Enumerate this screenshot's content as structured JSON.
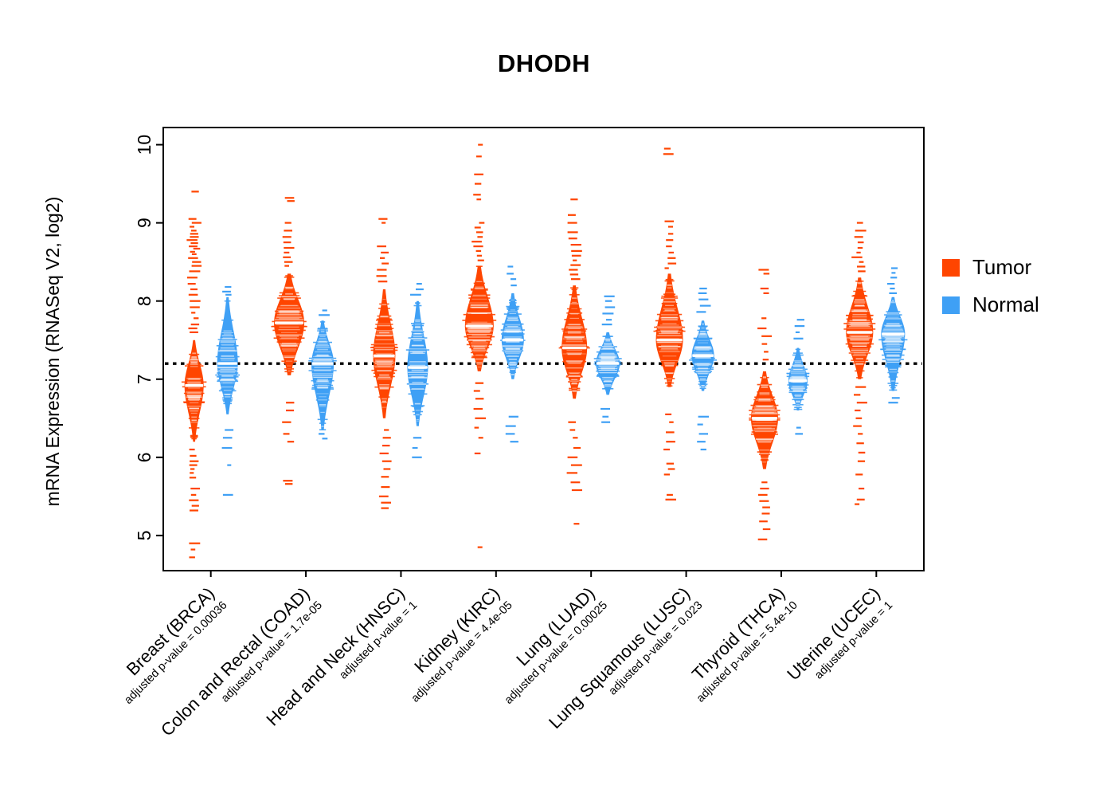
{
  "title": "DHODH",
  "legend": {
    "tumor_label": "Tumor",
    "normal_label": "Normal"
  },
  "colors": {
    "tumor": "#FF4500",
    "normal": "#3FA0F5",
    "reference_line": "#000000"
  },
  "chart_data": {
    "type": "violin",
    "subtype": "beanplot-tumor-vs-normal",
    "title": "DHODH",
    "ylabel": "mRNA Expression (RNASeq V2, log2)",
    "ylim": [
      4.55,
      10.22
    ],
    "yticks": [
      5,
      6,
      7,
      8,
      9,
      10
    ],
    "reference_line_y": 7.2,
    "legend_position": "right",
    "grid": false,
    "groups": [
      {
        "label": "Breast (BRCA)",
        "pvalue_label": "adjusted p-value = 0.00036",
        "tumor": {
          "median": 6.92,
          "lo": 6.2,
          "hi": 7.5,
          "width": 12,
          "outliers_high": [
            7.6,
            7.65,
            7.7,
            7.78,
            7.85,
            7.92,
            8.0,
            8.08,
            8.15,
            8.22,
            8.3,
            8.38,
            8.45,
            8.5,
            8.55,
            8.6,
            8.63,
            8.67,
            8.7,
            8.74,
            8.78,
            8.82,
            8.86,
            8.9,
            8.95,
            9.0,
            9.05,
            9.4
          ],
          "outliers_low": [
            6.1,
            6.02,
            5.95,
            5.9,
            5.85,
            5.8,
            5.74,
            5.6,
            5.52,
            5.45,
            5.38,
            5.32,
            4.9,
            4.82,
            4.72
          ]
        },
        "normal": {
          "median": 7.2,
          "lo": 6.55,
          "hi": 8.05,
          "width": 13,
          "outliers_high": [
            8.08,
            8.12,
            8.18
          ],
          "outliers_low": [
            6.35,
            6.25,
            6.12,
            5.9,
            5.52
          ]
        }
      },
      {
        "label": "Colon and Rectal (COAD)",
        "pvalue_label": "adjusted p-value = 1.7e-05",
        "tumor": {
          "median": 7.72,
          "lo": 7.05,
          "hi": 8.35,
          "width": 19,
          "outliers_high": [
            8.45,
            8.5,
            8.56,
            8.62,
            8.68,
            8.75,
            8.82,
            8.9,
            9.0,
            9.28,
            9.32
          ],
          "outliers_low": [
            6.7,
            6.6,
            6.45,
            6.3,
            6.2,
            5.7,
            5.66
          ]
        },
        "normal": {
          "median": 7.2,
          "lo": 6.35,
          "hi": 7.75,
          "width": 14,
          "outliers_high": [
            7.82,
            7.88
          ],
          "outliers_low": [
            6.3,
            6.24
          ]
        }
      },
      {
        "label": "Head and Neck (HNSC)",
        "pvalue_label": "adjusted p-value = 1",
        "tumor": {
          "median": 7.3,
          "lo": 6.5,
          "hi": 8.15,
          "width": 14,
          "outliers_high": [
            8.25,
            8.32,
            8.4,
            8.48,
            8.55,
            8.62,
            8.7,
            9.0,
            9.05
          ],
          "outliers_low": [
            6.35,
            6.25,
            6.15,
            6.05,
            5.95,
            5.85,
            5.75,
            5.62,
            5.5,
            5.42,
            5.35
          ]
        },
        "normal": {
          "median": 7.15,
          "lo": 6.4,
          "hi": 8.0,
          "width": 13,
          "outliers_high": [
            8.08,
            8.15,
            8.22
          ],
          "outliers_low": [
            6.25,
            6.12,
            6.0
          ]
        }
      },
      {
        "label": "Kidney (KIRC)",
        "pvalue_label": "adjusted p-value = 4.4e-05",
        "tumor": {
          "median": 7.68,
          "lo": 7.1,
          "hi": 8.45,
          "width": 18,
          "outliers_high": [
            8.52,
            8.58,
            8.64,
            8.7,
            8.76,
            8.82,
            8.88,
            8.94,
            9.0,
            9.3,
            9.36,
            9.5,
            9.62,
            9.85,
            10.0
          ],
          "outliers_low": [
            6.95,
            6.85,
            6.75,
            6.62,
            6.5,
            6.38,
            6.25,
            6.05,
            4.85
          ]
        },
        "normal": {
          "median": 7.5,
          "lo": 7.0,
          "hi": 8.1,
          "width": 14,
          "outliers_high": [
            8.2,
            8.28,
            8.35,
            8.44
          ],
          "outliers_low": [
            6.52,
            6.4,
            6.3,
            6.2
          ]
        }
      },
      {
        "label": "Lung (LUAD)",
        "pvalue_label": "adjusted p-value = 0.00025",
        "tumor": {
          "median": 7.4,
          "lo": 6.75,
          "hi": 8.2,
          "width": 16,
          "outliers_high": [
            8.28,
            8.34,
            8.4,
            8.46,
            8.52,
            8.58,
            8.64,
            8.72,
            8.8,
            8.88,
            9.0,
            9.1,
            9.3
          ],
          "outliers_low": [
            6.45,
            6.35,
            6.25,
            6.12,
            6.0,
            5.9,
            5.8,
            5.68,
            5.58,
            5.15
          ]
        },
        "normal": {
          "median": 7.2,
          "lo": 6.8,
          "hi": 7.6,
          "width": 15,
          "outliers_high": [
            7.7,
            7.76,
            7.84,
            7.92,
            8.0,
            8.06
          ],
          "outliers_low": [
            6.62,
            6.52,
            6.45
          ]
        }
      },
      {
        "label": "Lung Squamous (LUSC)",
        "pvalue_label": "adjusted p-value = 0.023",
        "tumor": {
          "median": 7.5,
          "lo": 6.9,
          "hi": 8.35,
          "width": 17,
          "outliers_high": [
            8.42,
            8.48,
            8.55,
            8.62,
            8.7,
            8.78,
            8.86,
            8.95,
            9.02,
            9.88,
            9.95
          ],
          "outliers_low": [
            6.55,
            6.45,
            6.32,
            6.2,
            6.1,
            5.92,
            5.85,
            5.78,
            5.52,
            5.46
          ]
        },
        "normal": {
          "median": 7.3,
          "lo": 6.85,
          "hi": 7.75,
          "width": 14,
          "outliers_high": [
            7.86,
            7.94,
            8.02,
            8.1,
            8.16
          ],
          "outliers_low": [
            6.52,
            6.42,
            6.3,
            6.2,
            6.1
          ]
        }
      },
      {
        "label": "Thyroid (THCA)",
        "pvalue_label": "adjusted p-value = 5.4e-10",
        "tumor": {
          "median": 6.5,
          "lo": 5.85,
          "hi": 7.1,
          "width": 17,
          "outliers_high": [
            7.25,
            7.35,
            7.45,
            7.55,
            7.65,
            7.78,
            8.1,
            8.16,
            8.35,
            8.4
          ],
          "outliers_low": [
            5.68,
            5.6,
            5.52,
            5.44,
            5.36,
            5.28,
            5.18,
            5.08,
            4.95
          ]
        },
        "normal": {
          "median": 6.98,
          "lo": 6.6,
          "hi": 7.4,
          "width": 12,
          "outliers_high": [
            7.52,
            7.6,
            7.68,
            7.76
          ],
          "outliers_low": [
            6.38,
            6.3
          ]
        }
      },
      {
        "label": "Uterine (UCEC)",
        "pvalue_label": "adjusted p-value = 1",
        "tumor": {
          "median": 7.6,
          "lo": 7.0,
          "hi": 8.3,
          "width": 17,
          "outliers_high": [
            8.38,
            8.44,
            8.5,
            8.56,
            8.62,
            8.68,
            8.75,
            8.82,
            8.9,
            9.0
          ],
          "outliers_low": [
            6.9,
            6.8,
            6.7,
            6.6,
            6.5,
            6.4,
            6.3,
            6.18,
            6.06,
            5.95,
            5.78,
            5.6,
            5.46,
            5.4
          ]
        },
        "normal": {
          "median": 7.58,
          "lo": 6.85,
          "hi": 8.05,
          "width": 15,
          "outliers_high": [
            8.1,
            8.16,
            8.22,
            8.3,
            8.36,
            8.42
          ],
          "outliers_low": [
            6.76,
            6.7
          ]
        }
      }
    ]
  }
}
